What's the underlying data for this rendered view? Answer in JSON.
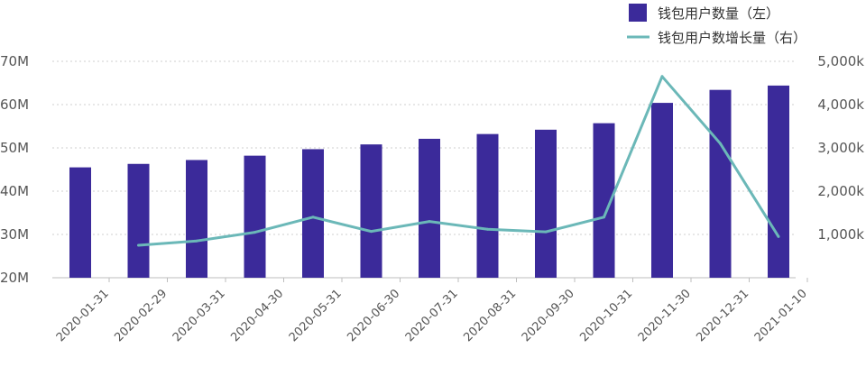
{
  "chart_data": {
    "type": "bar",
    "categories": [
      "2020-01-31",
      "2020-02-29",
      "2020-03-31",
      "2020-04-30",
      "2020-05-31",
      "2020-06-30",
      "2020-07-31",
      "2020-08-31",
      "2020-09-30",
      "2020-10-31",
      "2020-11-30",
      "2020-12-31",
      "2021-01-10"
    ],
    "series": [
      {
        "name": "钱包用户数量（左）",
        "type": "bar",
        "axis": "left",
        "color": "#3b2a9a",
        "values": [
          45.5,
          46.3,
          47.2,
          48.2,
          49.7,
          50.8,
          52.1,
          53.2,
          54.2,
          55.7,
          60.4,
          63.4,
          64.4
        ]
      },
      {
        "name": "钱包用户数增长量（右）",
        "type": "line",
        "axis": "right",
        "color": "#6bb8b8",
        "values": [
          null,
          750,
          850,
          1050,
          1400,
          1070,
          1300,
          1120,
          1060,
          1400,
          4650,
          3100,
          950
        ]
      }
    ],
    "y_left": {
      "ylim": [
        20,
        70
      ],
      "ticks": [
        20,
        30,
        40,
        50,
        60,
        70
      ],
      "tick_labels": [
        "20M",
        "30M",
        "40M",
        "50M",
        "60M",
        "70M"
      ]
    },
    "y_right": {
      "ylim": [
        0,
        5000
      ],
      "ticks": [
        1000,
        2000,
        3000,
        4000,
        5000
      ],
      "tick_labels": [
        "1,000k",
        "2,000k",
        "3,000k",
        "4,000k",
        "5,000k"
      ]
    },
    "grid": true,
    "legend_position": "top-right",
    "xlabel": "",
    "ylabel": ""
  }
}
